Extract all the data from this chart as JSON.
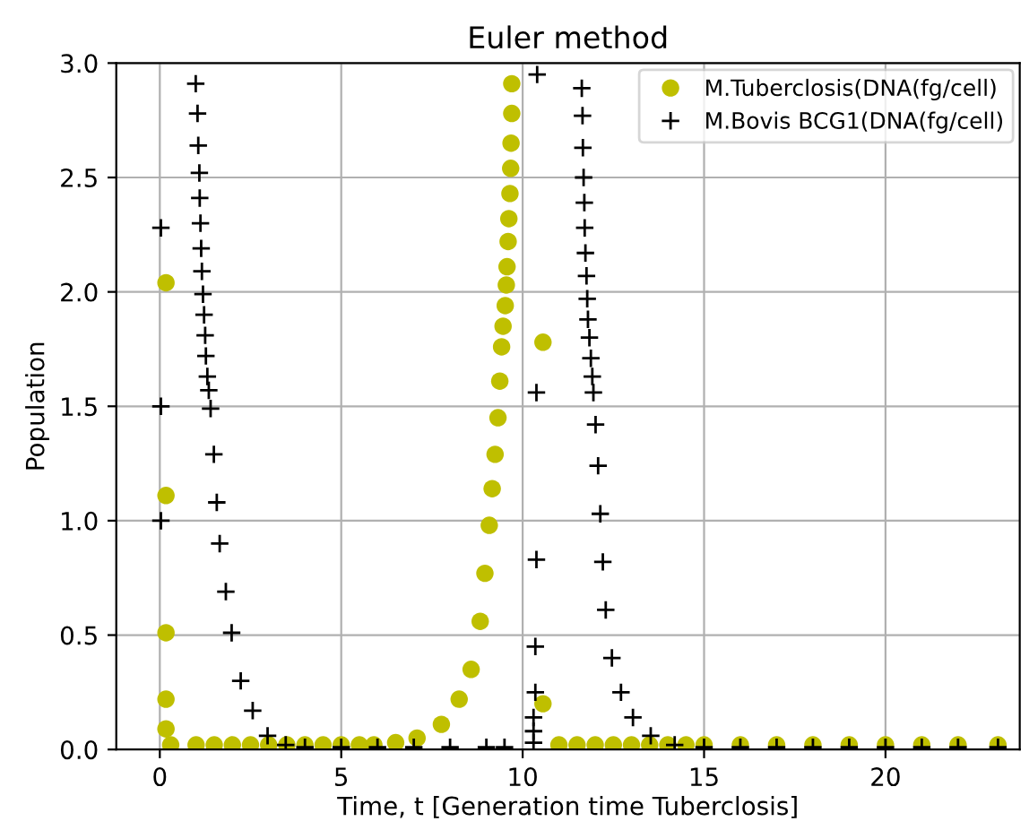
{
  "chart_data": {
    "type": "scatter",
    "title": "Euler method",
    "xlabel": "Time, t [Generation time Tuberclosis]",
    "ylabel": "Population",
    "xlim": [
      -1.2,
      23.7
    ],
    "ylim": [
      0,
      3
    ],
    "xticks": [
      0,
      5,
      10,
      15,
      20
    ],
    "yticks": [
      {
        "value": 0,
        "label": "0.0"
      },
      {
        "value": 0.5,
        "label": "0.5"
      },
      {
        "value": 1,
        "label": "1.0"
      },
      {
        "value": 1.5,
        "label": "1.5"
      },
      {
        "value": 2,
        "label": "2.0"
      },
      {
        "value": 2.5,
        "label": "2.5"
      },
      {
        "value": 3,
        "label": "3.0"
      }
    ],
    "grid": true,
    "legend": "top right",
    "series": [
      {
        "name": "M.Tuberclosis(DNA(fg/cell)",
        "color": "#bfbf00",
        "marker": "circle",
        "x": [
          0.17,
          0.17,
          0.17,
          0.17,
          0.17,
          0.3,
          1,
          1.5,
          2,
          2.5,
          3,
          3.5,
          4,
          4.5,
          5,
          5.5,
          5.9,
          6.5,
          7.09,
          7.76,
          8.25,
          8.58,
          8.83,
          8.96,
          9.08,
          9.16,
          9.24,
          9.32,
          9.37,
          9.42,
          9.46,
          9.52,
          9.55,
          9.57,
          9.6,
          9.62,
          9.65,
          9.67,
          9.68,
          9.7,
          9.7,
          10.56,
          10.56,
          11,
          11.5,
          12,
          12.5,
          13,
          13.5,
          14,
          14.5,
          15,
          16,
          17,
          18,
          19,
          20,
          21,
          22,
          23.1
        ],
        "values": [
          2.04,
          1.11,
          0.51,
          0.22,
          0.09,
          0.02,
          0.02,
          0.02,
          0.02,
          0.02,
          0.02,
          0.02,
          0.02,
          0.02,
          0.02,
          0.02,
          0.02,
          0.03,
          0.05,
          0.11,
          0.22,
          0.35,
          0.56,
          0.77,
          0.98,
          1.14,
          1.29,
          1.45,
          1.61,
          1.76,
          1.85,
          1.94,
          2.03,
          2.11,
          2.22,
          2.32,
          2.43,
          2.54,
          2.65,
          2.78,
          2.91,
          1.78,
          0.2,
          0.02,
          0.02,
          0.02,
          0.02,
          0.02,
          0.02,
          0.02,
          0.02,
          0.02,
          0.02,
          0.02,
          0.02,
          0.02,
          0.02,
          0.02,
          0.02,
          0.02
        ]
      },
      {
        "name": "M.Bovis BCG1(DNA(fg/cell)",
        "color": "#000000",
        "marker": "cross",
        "x": [
          0.03,
          0.03,
          0.03,
          0.99,
          1.04,
          1.06,
          1.09,
          1.1,
          1.12,
          1.14,
          1.16,
          1.19,
          1.22,
          1.25,
          1.27,
          1.31,
          1.35,
          1.4,
          1.49,
          1.57,
          1.65,
          1.82,
          1.98,
          2.23,
          2.56,
          2.97,
          3.47,
          4,
          5,
          6,
          7,
          8,
          9,
          9.5,
          10.3,
          10.3,
          10.3,
          10.35,
          10.35,
          10.38,
          10.38,
          10.4,
          11.63,
          11.65,
          11.66,
          11.68,
          11.7,
          11.71,
          11.73,
          11.76,
          11.78,
          11.8,
          11.84,
          11.88,
          11.92,
          11.95,
          12.01,
          12.08,
          12.14,
          12.21,
          12.29,
          12.46,
          12.71,
          13.04,
          13.53,
          14.19,
          15,
          16,
          17,
          18,
          19,
          20,
          21,
          22,
          23.1
        ],
        "values": [
          2.28,
          1.5,
          1.0,
          2.91,
          2.78,
          2.64,
          2.52,
          2.41,
          2.3,
          2.19,
          2.09,
          1.99,
          1.9,
          1.81,
          1.72,
          1.63,
          1.57,
          1.49,
          1.29,
          1.08,
          0.9,
          0.69,
          0.51,
          0.3,
          0.17,
          0.06,
          0.02,
          0.01,
          0.01,
          0.01,
          0.01,
          0.01,
          0.01,
          0.01,
          0.03,
          0.08,
          0.14,
          0.25,
          0.45,
          0.83,
          1.56,
          2.95,
          2.89,
          2.77,
          2.63,
          2.5,
          2.39,
          2.28,
          2.17,
          2.07,
          1.97,
          1.88,
          1.8,
          1.71,
          1.63,
          1.56,
          1.42,
          1.24,
          1.03,
          0.82,
          0.61,
          0.4,
          0.25,
          0.14,
          0.06,
          0.02,
          0.01,
          0.01,
          0.01,
          0.01,
          0.01,
          0.01,
          0.01,
          0.01,
          0.01
        ]
      }
    ]
  }
}
